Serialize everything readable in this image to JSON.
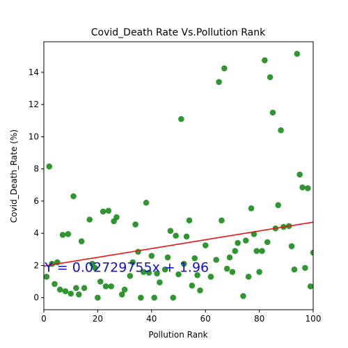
{
  "chart_data": {
    "type": "scatter",
    "title": "Covid_Death Rate Vs.Pollution Rank",
    "xlabel": "Pollution Rank",
    "ylabel": "Covid_Death_Rate (%)",
    "xlim": [
      0,
      100
    ],
    "ylim": [
      -0.75,
      15.9
    ],
    "xticks": [
      0,
      20,
      40,
      60,
      80,
      100
    ],
    "yticks": [
      0,
      2,
      4,
      6,
      8,
      10,
      12,
      14
    ],
    "grid": false,
    "point_color": "#1a8c1a",
    "line_color": "#ee1111",
    "annotation_color": "#1111cc",
    "points": [
      [
        1,
        1.3
      ],
      [
        2,
        8.15
      ],
      [
        3,
        2.1
      ],
      [
        4,
        0.85
      ],
      [
        5,
        2.2
      ],
      [
        6,
        0.5
      ],
      [
        7,
        3.9
      ],
      [
        8,
        0.4
      ],
      [
        9,
        3.95
      ],
      [
        10,
        0.25
      ],
      [
        11,
        6.3
      ],
      [
        12,
        0.6
      ],
      [
        13,
        0.2
      ],
      [
        14,
        3.5
      ],
      [
        15,
        0.6
      ],
      [
        17,
        4.85
      ],
      [
        18,
        2.1
      ],
      [
        19,
        1.85
      ],
      [
        20,
        0.0
      ],
      [
        21,
        1.0
      ],
      [
        22,
        5.35
      ],
      [
        23,
        0.7
      ],
      [
        24,
        5.4
      ],
      [
        25,
        0.7
      ],
      [
        26,
        4.75
      ],
      [
        27,
        5.0
      ],
      [
        29,
        0.2
      ],
      [
        30,
        0.5
      ],
      [
        32,
        1.35
      ],
      [
        33,
        2.2
      ],
      [
        34,
        4.55
      ],
      [
        35,
        2.85
      ],
      [
        36,
        0.0
      ],
      [
        37,
        1.6
      ],
      [
        38,
        5.9
      ],
      [
        39,
        1.55
      ],
      [
        40,
        2.6
      ],
      [
        41,
        0.0
      ],
      [
        42,
        1.5
      ],
      [
        43,
        0.95
      ],
      [
        45,
        1.75
      ],
      [
        46,
        2.5
      ],
      [
        47,
        4.15
      ],
      [
        48,
        0.0
      ],
      [
        49,
        3.85
      ],
      [
        50,
        1.45
      ],
      [
        51,
        11.1
      ],
      [
        52,
        2.1
      ],
      [
        53,
        3.8
      ],
      [
        54,
        4.8
      ],
      [
        55,
        0.75
      ],
      [
        56,
        2.45
      ],
      [
        57,
        1.4
      ],
      [
        58,
        0.45
      ],
      [
        60,
        3.25
      ],
      [
        62,
        1.3
      ],
      [
        64,
        2.35
      ],
      [
        65,
        13.4
      ],
      [
        66,
        4.8
      ],
      [
        67,
        14.25
      ],
      [
        68,
        1.8
      ],
      [
        69,
        2.5
      ],
      [
        70,
        1.6
      ],
      [
        71,
        2.9
      ],
      [
        72,
        3.4
      ],
      [
        74,
        0.1
      ],
      [
        75,
        3.55
      ],
      [
        76,
        1.3
      ],
      [
        77,
        5.55
      ],
      [
        78,
        3.95
      ],
      [
        79,
        2.9
      ],
      [
        80,
        1.6
      ],
      [
        81,
        2.9
      ],
      [
        82,
        14.75
      ],
      [
        83,
        3.45
      ],
      [
        84,
        13.7
      ],
      [
        85,
        11.5
      ],
      [
        86,
        4.3
      ],
      [
        87,
        5.75
      ],
      [
        88,
        10.4
      ],
      [
        89,
        4.4
      ],
      [
        91,
        4.45
      ],
      [
        92,
        3.2
      ],
      [
        93,
        1.75
      ],
      [
        94,
        15.15
      ],
      [
        95,
        7.65
      ],
      [
        96,
        6.85
      ],
      [
        97,
        1.85
      ],
      [
        98,
        6.8
      ],
      [
        99,
        0.7
      ],
      [
        100,
        2.8
      ]
    ],
    "regression": {
      "slope": 0.02729755,
      "intercept": 1.96
    },
    "annotation": {
      "text": "Y = 0.02729755x + 1.96",
      "x": 0.3,
      "y": 1.6
    }
  }
}
